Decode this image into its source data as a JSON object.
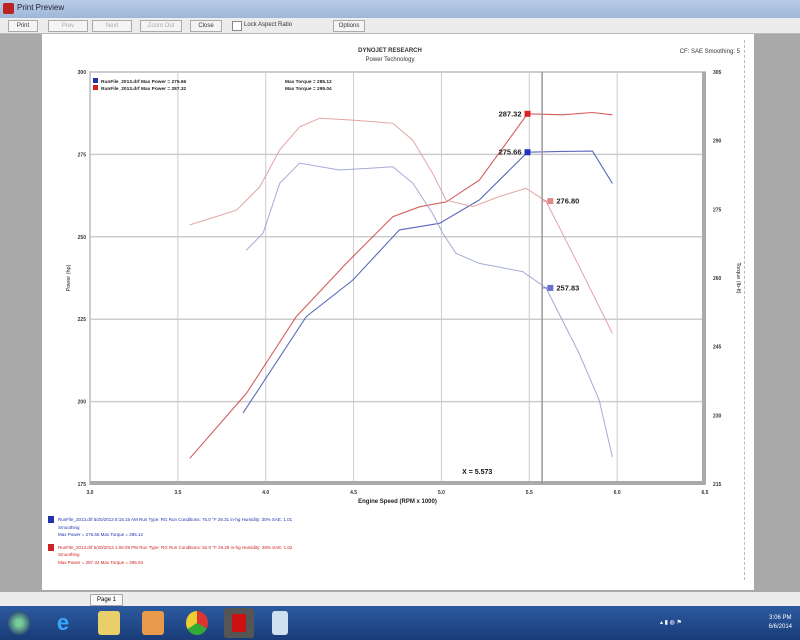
{
  "window": {
    "title": "Print Preview"
  },
  "toolbar": {
    "print": "Print",
    "prev": "Prev",
    "next": "Next",
    "zoom_out": "Zoom Out",
    "close": "Close",
    "lock_aspect": "Lock Aspect Ratio",
    "options": "Options"
  },
  "header": {
    "title": "DYNOJET RESEARCH",
    "subtitle": "Power Technology",
    "corr": "CF: SAE  Smoothing: 5"
  },
  "chart_data": {
    "type": "line",
    "xlabel": "Engine Speed (RPM x 1000)",
    "ylabel": "Power (hp)",
    "y2label": "Torque (lb-ft)",
    "xlim": [
      3.0,
      6.5
    ],
    "ylim": [
      175,
      300
    ],
    "y2lim": [
      215,
      305
    ],
    "xticks": [
      "3.0",
      "3.5",
      "4.0",
      "4.5",
      "5.0",
      "5.5",
      "6.0",
      "6.5"
    ],
    "yticks": [
      "300",
      "275",
      "250",
      "225",
      "200",
      "175"
    ],
    "y2ticks": [
      "305",
      "290",
      "275",
      "260",
      "245",
      "230",
      "215"
    ],
    "grid": true,
    "cursor": {
      "x": 5.573,
      "label": "X = 5.573"
    },
    "legend": [
      {
        "text": "RunFile_2013.drf Max Power = 275.66",
        "torque_text": "Max Torque = 285.12",
        "color": "#2233aa"
      },
      {
        "text": "RunFile_2013.drf Max Power = 287.32",
        "torque_text": "Max Torque = 295.04",
        "color": "#cc2222"
      }
    ],
    "series": [
      {
        "kind": "power",
        "axis": "left",
        "color": "#cc3333",
        "x": [
          3.568,
          3.89,
          4.174,
          4.459,
          4.723,
          4.875,
          5.027,
          5.216,
          5.49,
          5.689,
          5.86,
          5.973
        ],
        "y": [
          182.8,
          202.5,
          225.8,
          242.0,
          256.1,
          259.1,
          260.6,
          267.2,
          287.32,
          287.0,
          287.7,
          287.0
        ]
      },
      {
        "kind": "power",
        "axis": "left",
        "color": "#3344aa",
        "x": [
          3.871,
          4.231,
          4.496,
          4.761,
          4.989,
          5.216,
          5.49,
          5.689,
          5.86,
          5.973
        ],
        "y": [
          196.5,
          225.8,
          236.9,
          252.1,
          254.1,
          261.2,
          275.66,
          275.9,
          276.0,
          266.2
        ]
      },
      {
        "kind": "torque",
        "axis": "right",
        "color": "#e09a9a",
        "x": [
          3.568,
          3.834,
          3.966,
          4.08,
          4.193,
          4.307,
          4.496,
          4.723,
          4.837,
          4.95,
          5.027,
          5.178,
          5.33,
          5.481,
          5.595,
          5.784,
          5.973
        ],
        "y": [
          271.6,
          274.8,
          279.9,
          288.0,
          293.0,
          294.9,
          294.5,
          293.8,
          290.1,
          282.9,
          277.0,
          275.6,
          277.8,
          279.6,
          276.8,
          262.5,
          247.9
        ]
      },
      {
        "kind": "torque",
        "axis": "right",
        "color": "#9aa2d4",
        "x": [
          3.89,
          3.985,
          4.08,
          4.193,
          4.42,
          4.723,
          4.837,
          4.95,
          5.007,
          5.083,
          5.216,
          5.462,
          5.595,
          5.784,
          5.898,
          5.973
        ],
        "y": [
          266.1,
          269.8,
          280.7,
          285.1,
          283.6,
          284.3,
          280.7,
          274.1,
          269.8,
          265.4,
          263.2,
          261.4,
          257.83,
          243.5,
          233.3,
          220.9
        ]
      }
    ],
    "markers": [
      {
        "x": 5.49,
        "y": 287.32,
        "axis": "left",
        "label": "287.32",
        "color": "#dd2222",
        "side": "left"
      },
      {
        "x": 5.49,
        "y": 275.66,
        "axis": "left",
        "label": "275.66",
        "color": "#2233bb",
        "side": "left"
      },
      {
        "x": 5.62,
        "y": 276.8,
        "axis": "right",
        "label": "276.80",
        "color": "#e08888",
        "side": "right"
      },
      {
        "x": 5.62,
        "y": 257.83,
        "axis": "right",
        "label": "257.83",
        "color": "#6670cc",
        "side": "right"
      }
    ]
  },
  "run_info": [
    {
      "color": "#2233aa",
      "line1": "RunFile_2013.drf  5/20/2013 8:15:15 AM  Run Type: RG  Run Conditions: 75.0 °F  29.31 in-hg  Humidity: 30%  SAE: 1.01",
      "line2": "Smoothing",
      "line3": "Max Power = 275.66  Max Torque = 285.12"
    },
    {
      "color": "#cc2222",
      "line1": "RunFile_2013.drf  5/20/2013 1:06:09 PM  Run Type: RG  Run Conditions: 82.0 °F  29.28 in-hg  Humidity: 28%  SAE: 1.02",
      "line2": "Smoothing",
      "line3": "Max Power = 287.32  Max Torque = 295.04"
    }
  ],
  "status": {
    "page": "Page 1"
  },
  "taskbar": {
    "time": "3:06 PM",
    "date": "6/6/2014",
    "apps": [
      "start",
      "internet-explorer",
      "file-explorer",
      "media-player",
      "chrome",
      "dynojet",
      "notepad"
    ]
  }
}
